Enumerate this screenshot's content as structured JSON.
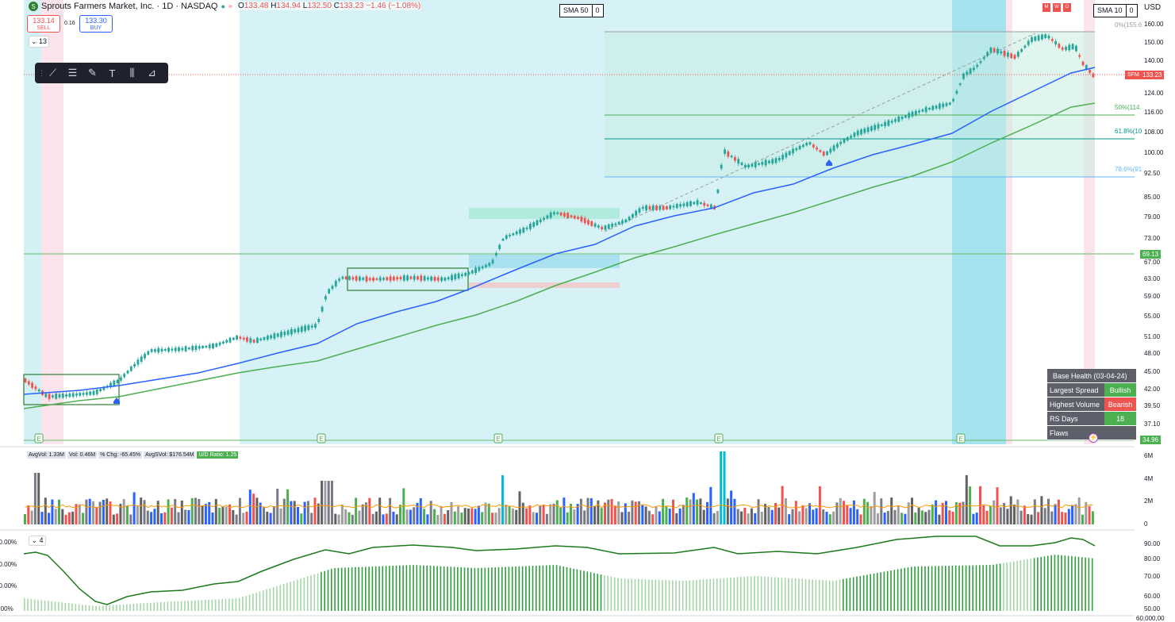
{
  "header": {
    "symbol_title": "Sprouts Farmers Market, Inc. · 1D · NASDAQ",
    "ohlc": {
      "o_label": "O",
      "o": "133.48",
      "h_label": "H",
      "h": "134.94",
      "l_label": "L",
      "l": "132.50",
      "c_label": "C",
      "c": "133.23",
      "change": "−1.46 (−1.08%)"
    },
    "sell_price": "133.14",
    "sell_label": "SELL",
    "buy_price": "133.30",
    "buy_label": "BUY",
    "spread": "0.16",
    "collapse_count": "13"
  },
  "legend": {
    "sma50_label": "SMA 50",
    "sma50_value": "0",
    "sma10_label": "SMA 10",
    "sma10_value": "0",
    "currency": "USD",
    "mwd": [
      "M",
      "W",
      "D"
    ]
  },
  "price_axis": [
    "160.00",
    "150.00",
    "140.00",
    "124.00",
    "116.00",
    "108.00",
    "100.00",
    "92.50",
    "85.00",
    "79.00",
    "73.00",
    "67.00",
    "63.00",
    "59.00",
    "55.00",
    "51.00",
    "48.00",
    "45.00",
    "42.00",
    "39.50",
    "37.10"
  ],
  "price_tags": {
    "symbol": "SFM",
    "last": "133.23",
    "level1": "69.13",
    "level2": "34.96"
  },
  "fib_labels": {
    "f0": "0%(155.6",
    "f50": "50%(114.",
    "f618": "61.8%(10",
    "f786": "78.6%(91"
  },
  "earnings_marker": "E",
  "base_table": {
    "title": "Base Health (03-04-24)",
    "rows": [
      {
        "key": "Largest Spread",
        "value": "Bullish",
        "color": "#4caf50"
      },
      {
        "key": "Highest Volume",
        "value": "Bearish",
        "color": "#ef5350"
      },
      {
        "key": "RS Days",
        "value": "18",
        "color": "#4caf50"
      },
      {
        "key": "Flaws",
        "value": "",
        "color": "#5d606b"
      }
    ]
  },
  "volume_stats": {
    "avgvol": "AvgVol: 1.33M",
    "vol": "Vol: 0.46M",
    "chg": "% Chg: -65.45%",
    "avgdvol": "AvgSVol: $176.54M",
    "ud": "U/D Ratio: 1.25"
  },
  "volume_axis": [
    "6M",
    "4M",
    "2M",
    "0"
  ],
  "indicator": {
    "collapse_count": "4",
    "right_axis": [
      "90.00",
      "80.00",
      "70.00",
      "60.00",
      "50.00"
    ],
    "left_axis": [
      "00.00%",
      "00.00%",
      "00.00%",
      "0.00%"
    ],
    "bottom_label": "60,000,00"
  },
  "colors": {
    "up": "#26a69a",
    "down": "#ef5350",
    "sma_blue": "#2962ff",
    "sma_green": "#4caf50",
    "highlight_cyan": "#b2ebf2"
  }
}
